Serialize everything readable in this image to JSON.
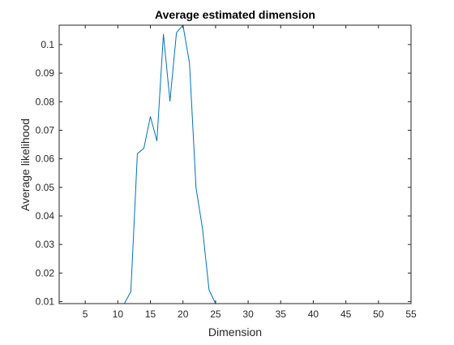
{
  "chart_data": {
    "type": "line",
    "title": "Average estimated dimension",
    "xlabel": "Dimension",
    "ylabel": "Average likelihood",
    "xlim": [
      1,
      55
    ],
    "ylim": [
      0.0093,
      0.1068
    ],
    "xticks": [
      5,
      10,
      15,
      20,
      25,
      30,
      35,
      40,
      45,
      50,
      55
    ],
    "yticks": [
      0.01,
      0.02,
      0.03,
      0.04,
      0.05,
      0.06,
      0.07,
      0.08,
      0.09,
      0.1
    ],
    "ytick_labels": [
      "0.01",
      "0.02",
      "0.03",
      "0.04",
      "0.05",
      "0.06",
      "0.07",
      "0.08",
      "0.09",
      "0.1"
    ],
    "grid": false,
    "box": true,
    "colors": {
      "line": "#0072BD",
      "axis": "#262626",
      "text": "#262626",
      "background": "#ffffff"
    },
    "series": [
      {
        "x": [
          1,
          2,
          3,
          4,
          5,
          6,
          7,
          8,
          9,
          10,
          11,
          12,
          13,
          14,
          15,
          16,
          17,
          18,
          19,
          20,
          21,
          22,
          23,
          24,
          25,
          26,
          27,
          28,
          29,
          30,
          31,
          32,
          33,
          34,
          35,
          36,
          37,
          38,
          39,
          40,
          41,
          42,
          43,
          44,
          45,
          46,
          47,
          48,
          49,
          50,
          51,
          52,
          53,
          54,
          55
        ],
        "values": [
          0.0093,
          0.0093,
          0.0093,
          0.0093,
          0.0093,
          0.0093,
          0.0093,
          0.0093,
          0.0093,
          0.0093,
          0.0093,
          0.0135,
          0.0618,
          0.0637,
          0.0748,
          0.0663,
          0.1036,
          0.0802,
          0.1042,
          0.1068,
          0.0935,
          0.0499,
          0.0355,
          0.0141,
          0.0093,
          0.0093,
          0.0093,
          0.0093,
          0.0093,
          0.0093,
          0.0093,
          0.0093,
          0.0093,
          0.0093,
          0.0093,
          0.0093,
          0.0093,
          0.0093,
          0.0093,
          0.0093,
          0.0093,
          0.0093,
          0.0093,
          0.0093,
          0.0093,
          0.0093,
          0.0093,
          0.0093,
          0.0093,
          0.0093,
          0.0093,
          0.0093,
          0.0093,
          0.0093,
          0.0093
        ]
      }
    ]
  }
}
